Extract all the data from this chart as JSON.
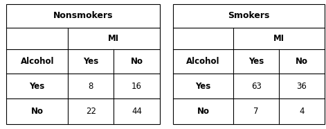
{
  "tables": [
    {
      "title": "Nonsmokers",
      "mi_label": "MI",
      "col_headers": [
        "Alcohol",
        "Yes",
        "No"
      ],
      "rows": [
        [
          "Yes",
          "8",
          "16"
        ],
        [
          "No",
          "22",
          "44"
        ]
      ]
    },
    {
      "title": "Smokers",
      "mi_label": "MI",
      "col_headers": [
        "Alcohol",
        "Yes",
        "No"
      ],
      "rows": [
        [
          "Yes",
          "63",
          "36"
        ],
        [
          "No",
          "7",
          "4"
        ]
      ]
    }
  ],
  "bg_color": "#ffffff",
  "border_color": "#000000",
  "text_color": "#000000",
  "title_fontsize": 9,
  "header_fontsize": 8.5,
  "cell_fontsize": 8.5,
  "fig_width": 4.71,
  "fig_height": 1.86,
  "dpi": 100
}
